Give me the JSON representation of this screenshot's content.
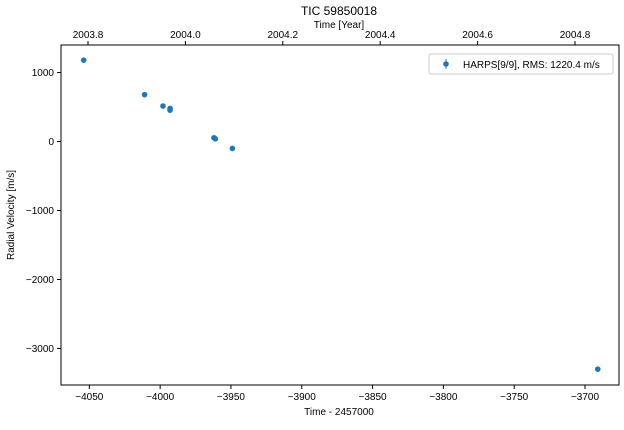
{
  "chart_data": {
    "type": "scatter",
    "title": "TIC 59850018",
    "xlabel": "Time - 2457000",
    "ylabel": "Radial Velocity [m/s]",
    "top_xlabel": "Time [Year]",
    "xlim": [
      -4070,
      -3676
    ],
    "ylim": [
      -3530,
      1400
    ],
    "xticks": [
      -4050,
      -4000,
      -3950,
      -3900,
      -3850,
      -3800,
      -3750,
      -3700
    ],
    "xtick_labels": [
      "−4050",
      "−4000",
      "−3950",
      "−3900",
      "−3850",
      "−3800",
      "−3750",
      "−3700"
    ],
    "yticks": [
      1000,
      0,
      -1000,
      -2000,
      -3000
    ],
    "ytick_labels": [
      "1000",
      "0",
      "−1000",
      "−2000",
      "−3000"
    ],
    "top_xticks": [
      2003.8,
      2004.0,
      2004.2,
      2004.4,
      2004.6,
      2004.8
    ],
    "top_xtick_labels": [
      "2003.8",
      "2004.0",
      "2004.2",
      "2004.4",
      "2004.6",
      "2004.8"
    ],
    "legend_position": "top-right",
    "grid": false,
    "series": [
      {
        "name": "HARPS[9/9], RMS:    1220.4 m/s",
        "color": "#1f77b4",
        "points": [
          {
            "x": -4054,
            "y": 1180
          },
          {
            "x": -4011,
            "y": 680
          },
          {
            "x": -3998,
            "y": 515
          },
          {
            "x": -3993,
            "y": 480
          },
          {
            "x": -3993,
            "y": 455
          },
          {
            "x": -3962,
            "y": 55
          },
          {
            "x": -3961,
            "y": 40
          },
          {
            "x": -3949,
            "y": -100
          },
          {
            "x": -3691,
            "y": -3300
          }
        ]
      }
    ]
  }
}
